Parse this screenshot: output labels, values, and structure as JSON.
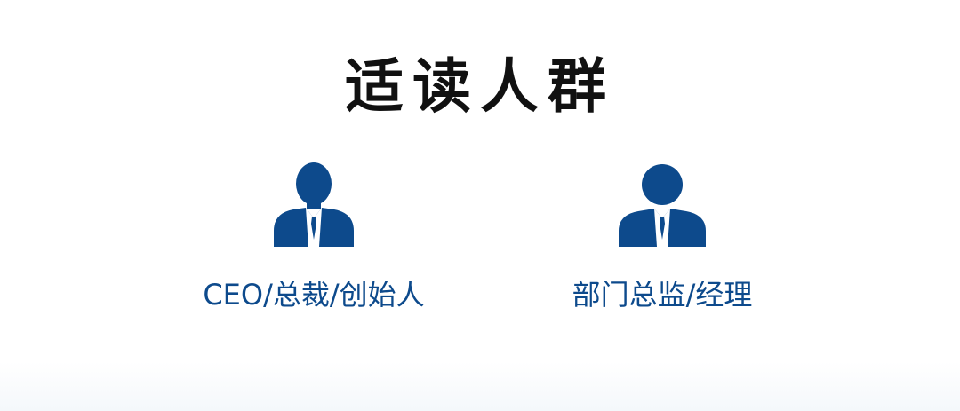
{
  "title": "适读人群",
  "audiences": [
    {
      "label": "CEO/总裁/创始人",
      "icon": "businessman-icon"
    },
    {
      "label": "部门总监/经理",
      "icon": "businessman-icon"
    }
  ],
  "colors": {
    "icon": "#0d4a8c",
    "label": "#0d4a8c",
    "title": "#111111",
    "background": "#ffffff"
  }
}
